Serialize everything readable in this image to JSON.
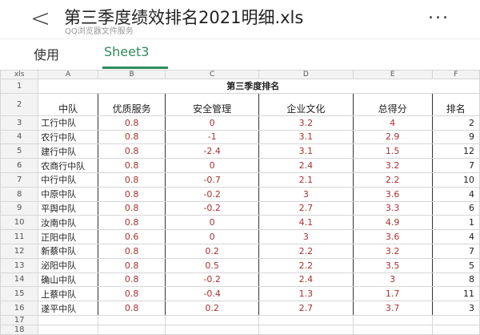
{
  "header": {
    "title": "第三季度绩效排名2021明细.xls",
    "subtitle": "QQ浏览器文件服务",
    "back_icon": "chevron-left-icon",
    "more_icon": "more-icon",
    "more": "..."
  },
  "tabs": [
    {
      "label": "使用",
      "active": false
    },
    {
      "label": "Sheet3",
      "active": true
    }
  ],
  "accent": "#2f8a5c",
  "value_color": "#a83232",
  "sheet": {
    "corner": "xls",
    "columns": [
      "A",
      "B",
      "C",
      "D",
      "E",
      "F"
    ],
    "sheet_title": "第三季度排名",
    "headers": [
      "中队",
      "优质服务",
      "安全管理",
      "企业文化",
      "总得分",
      "排名"
    ],
    "rows": [
      [
        "工行中队",
        "0.8",
        "0",
        "3.2",
        "4",
        "2"
      ],
      [
        "农行中队",
        "0.8",
        "-1",
        "3.1",
        "2.9",
        "9"
      ],
      [
        "建行中队",
        "0.8",
        "-2.4",
        "3.1",
        "1.5",
        "12"
      ],
      [
        "农商行中队",
        "0.8",
        "0",
        "2.4",
        "3.2",
        "7"
      ],
      [
        "中行中队",
        "0.8",
        "-0.7",
        "2.1",
        "2.2",
        "10"
      ],
      [
        "中原中队",
        "0.8",
        "-0.2",
        "3",
        "3.6",
        "4"
      ],
      [
        "平舆中队",
        "0.8",
        "-0.2",
        "2.7",
        "3.3",
        "6"
      ],
      [
        "汝南中队",
        "0.8",
        "0",
        "4.1",
        "4.9",
        "1"
      ],
      [
        "正阳中队",
        "0.6",
        "0",
        "3",
        "3.6",
        "4"
      ],
      [
        "新蔡中队",
        "0.8",
        "0.2",
        "2.2",
        "3.2",
        "7"
      ],
      [
        "泌阳中队",
        "0.8",
        "0.5",
        "2.2",
        "3.5",
        "5"
      ],
      [
        "确山中队",
        "0.8",
        "-0.2",
        "2.4",
        "3",
        "8"
      ],
      [
        "上蔡中队",
        "0.8",
        "-0.4",
        "1.3",
        "1.7",
        "11"
      ],
      [
        "遂平中队",
        "0.8",
        "0.2",
        "2.7",
        "3.7",
        "3"
      ]
    ],
    "row_numbers": [
      "1",
      "2",
      "3",
      "4",
      "5",
      "6",
      "7",
      "8",
      "9",
      "10",
      "11",
      "12",
      "13",
      "14",
      "15",
      "16",
      "17",
      "18"
    ]
  }
}
